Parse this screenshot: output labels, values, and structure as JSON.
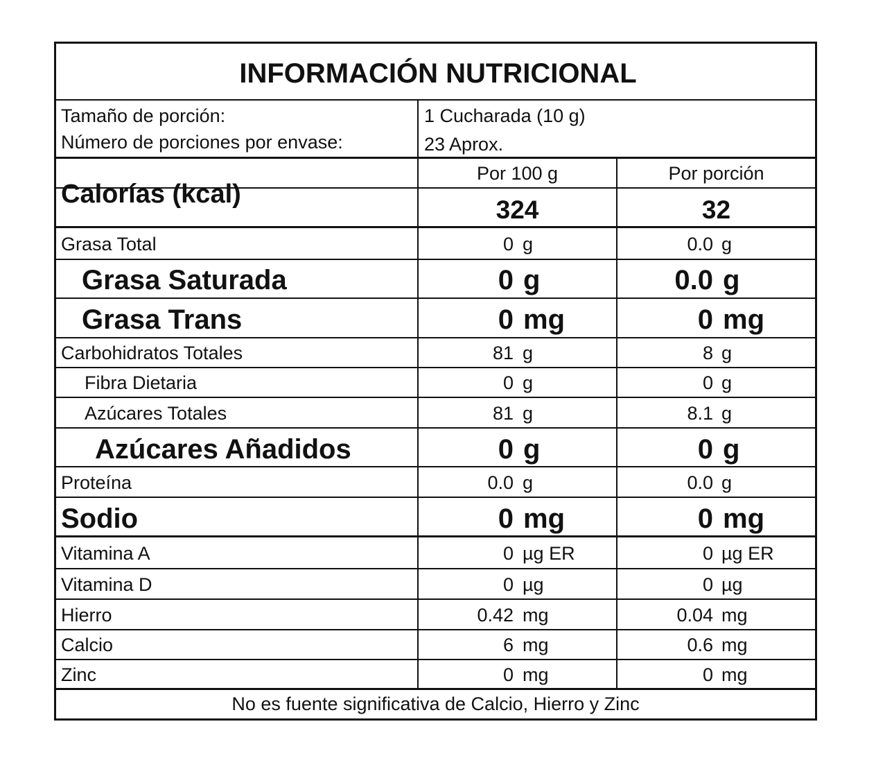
{
  "title": "INFORMACIÓN NUTRICIONAL",
  "serving": {
    "size_label": "Tamaño de porción:",
    "size_value": "1 Cucharada (10 g)",
    "count_label": "Número de porciones por envase:",
    "count_value": "23 Aprox."
  },
  "calories": {
    "label": "Calorías (kcal)",
    "col1_header": "Por 100 g",
    "col2_header": "Por porción",
    "col1_value": "324",
    "col2_value": "32"
  },
  "rows": [
    {
      "label": "Grasa Total",
      "v1": "0",
      "u1": "g",
      "v2": "0.0",
      "u2": "g"
    },
    {
      "label": "Grasa Saturada",
      "v1": "0",
      "u1": "g",
      "v2": "0.0",
      "u2": "g"
    },
    {
      "label": "Grasa Trans",
      "v1": "0",
      "u1": "mg",
      "v2": "0",
      "u2": "mg"
    },
    {
      "label": "Carbohidratos Totales",
      "v1": "81",
      "u1": "g",
      "v2": "8",
      "u2": "g"
    },
    {
      "label": "Fibra Dietaria",
      "v1": "0",
      "u1": "g",
      "v2": "0",
      "u2": "g"
    },
    {
      "label": "Azúcares Totales",
      "v1": "81",
      "u1": "g",
      "v2": "8.1",
      "u2": "g"
    },
    {
      "label": "Azúcares Añadidos",
      "v1": "0",
      "u1": "g",
      "v2": "0",
      "u2": "g"
    },
    {
      "label": "Proteína",
      "v1": "0.0",
      "u1": "g",
      "v2": "0.0",
      "u2": "g"
    },
    {
      "label": "Sodio",
      "v1": "0",
      "u1": "mg",
      "v2": "0",
      "u2": "mg"
    },
    {
      "label": "Vitamina A",
      "v1": "0",
      "u1": "µg ER",
      "v2": "0",
      "u2": "µg ER"
    },
    {
      "label": "Vitamina D",
      "v1": "0",
      "u1": "µg",
      "v2": "0",
      "u2": "µg"
    },
    {
      "label": "Hierro",
      "v1": "0.42",
      "u1": "mg",
      "v2": "0.04",
      "u2": "mg"
    },
    {
      "label": "Calcio",
      "v1": "6",
      "u1": "mg",
      "v2": "0.6",
      "u2": "mg"
    },
    {
      "label": "Zinc",
      "v1": "0",
      "u1": "mg",
      "v2": "0",
      "u2": "mg"
    }
  ],
  "footer": "No es fuente significativa de Calcio, Hierro y Zinc"
}
